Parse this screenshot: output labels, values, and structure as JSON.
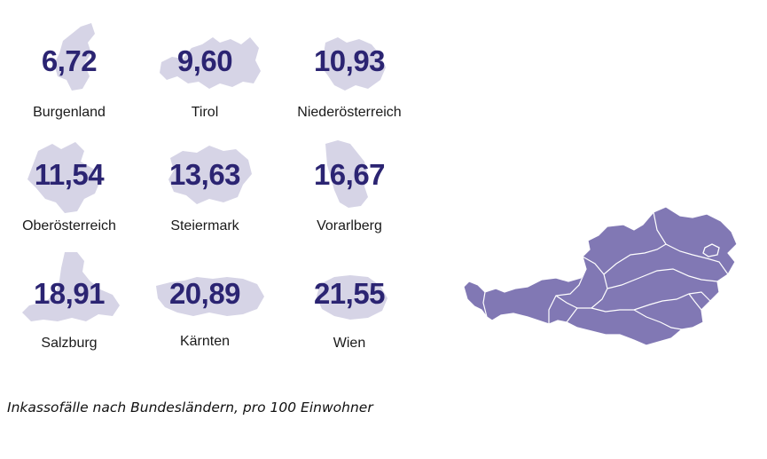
{
  "colors": {
    "shape_fill": "#d6d4e6",
    "value_text": "#2b2472",
    "map_fill": "#8178b4",
    "map_border": "#ffffff"
  },
  "states": [
    {
      "name": "Burgenland",
      "value": "6,72"
    },
    {
      "name": "Tirol",
      "value": "9,60"
    },
    {
      "name": "Niederösterreich",
      "value": "10,93"
    },
    {
      "name": "Oberösterreich",
      "value": "11,54"
    },
    {
      "name": "Steiermark",
      "value": "13,63"
    },
    {
      "name": "Vorarlberg",
      "value": "16,67"
    },
    {
      "name": "Salzburg",
      "value": "18,91"
    },
    {
      "name": "Kärnten",
      "value": "20,89"
    },
    {
      "name": "Wien",
      "value": "21,55"
    }
  ],
  "caption": "Inkassofälle nach Bundesländern, pro 100 Einwohner"
}
